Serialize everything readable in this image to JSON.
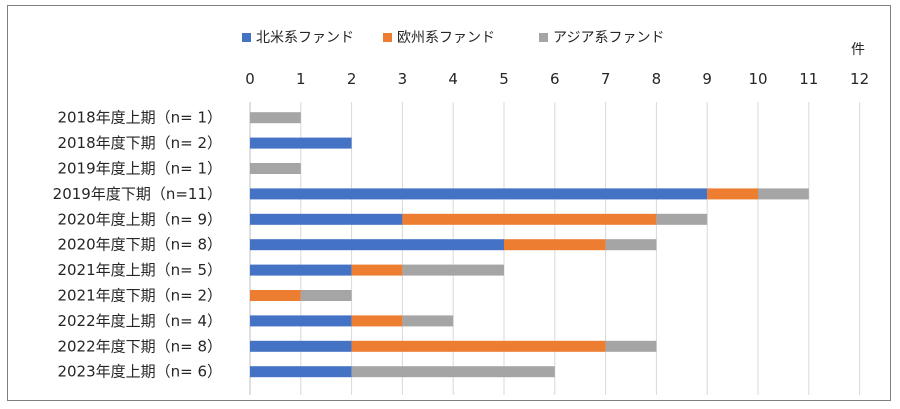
{
  "chart_data": {
    "type": "bar",
    "orientation": "horizontal",
    "stacked": true,
    "x_axis_position": "top",
    "unit_label": "件",
    "xlim": [
      0,
      12
    ],
    "ticks": [
      "0",
      "1",
      "2",
      "3",
      "4",
      "5",
      "6",
      "7",
      "8",
      "9",
      "10",
      "11",
      "12"
    ],
    "grid": true,
    "legend_position": "top",
    "categories": [
      "2018年度上期（n=  1）",
      "2018年度下期（n=  2）",
      "2019年度上期（n=  1）",
      "2019年度下期（n=11）",
      "2020年度上期（n=  9）",
      "2020年度下期（n=  8）",
      "2021年度上期（n=  5）",
      "2021年度下期（n=  2）",
      "2022年度上期（n=  4）",
      "2022年度下期（n=  8）",
      "2023年度上期（n=  6）"
    ],
    "series": [
      {
        "name": "北米系ファンド",
        "color": "#4472c4",
        "values": [
          0,
          2,
          0,
          9,
          3,
          5,
          2,
          0,
          2,
          2,
          2
        ]
      },
      {
        "name": "欧州系ファンド",
        "color": "#ed7d31",
        "values": [
          0,
          0,
          0,
          1,
          5,
          2,
          1,
          1,
          1,
          5,
          0
        ]
      },
      {
        "name": "アジア系ファンド",
        "color": "#a5a5a5",
        "values": [
          1,
          0,
          1,
          1,
          1,
          1,
          2,
          1,
          1,
          1,
          4
        ]
      }
    ]
  }
}
